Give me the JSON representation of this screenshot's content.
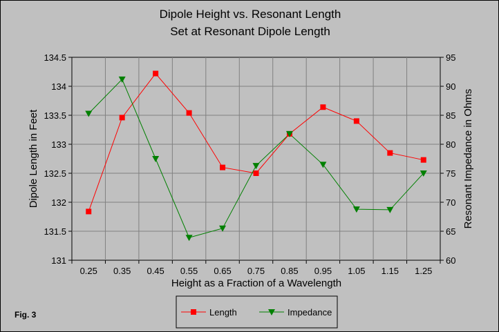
{
  "chart_data": {
    "type": "line",
    "title": [
      "Dipole Height vs. Resonant Length",
      "Set at Resonant Dipole Length"
    ],
    "xlabel": "Height as a Fraction of a Wavelength",
    "ylabel_left": "Dipole Length in Feet",
    "ylabel_right": "Resonant Impedance in Ohms",
    "categories": [
      "0.25",
      "0.35",
      "0.45",
      "0.55",
      "0.65",
      "0.75",
      "0.85",
      "0.95",
      "1.05",
      "1.15",
      "1.25"
    ],
    "y_left": {
      "min": 131,
      "max": 134.5,
      "step": 0.5,
      "tick_labels": [
        "131",
        "131.5",
        "132",
        "132.5",
        "133",
        "133.5",
        "134",
        "134.5"
      ]
    },
    "y_right": {
      "min": 60,
      "max": 95,
      "step": 5,
      "tick_labels": [
        "60",
        "65",
        "70",
        "75",
        "80",
        "85",
        "90",
        "95"
      ]
    },
    "grid": true,
    "legend_position": "bottom-center",
    "series": [
      {
        "name": "Length",
        "axis": "left",
        "color": "#ff0000",
        "marker": "square",
        "values": [
          131.84,
          133.46,
          134.22,
          133.54,
          132.6,
          132.5,
          133.18,
          133.64,
          133.4,
          132.85,
          132.73
        ]
      },
      {
        "name": "Impedance",
        "axis": "right",
        "color": "#008000",
        "marker": "triangle-down",
        "values": [
          85.3,
          91.2,
          77.5,
          63.9,
          65.5,
          76.3,
          81.8,
          76.5,
          68.8,
          68.7,
          75.0
        ]
      }
    ],
    "annotations": [
      "Fig. 3"
    ]
  }
}
